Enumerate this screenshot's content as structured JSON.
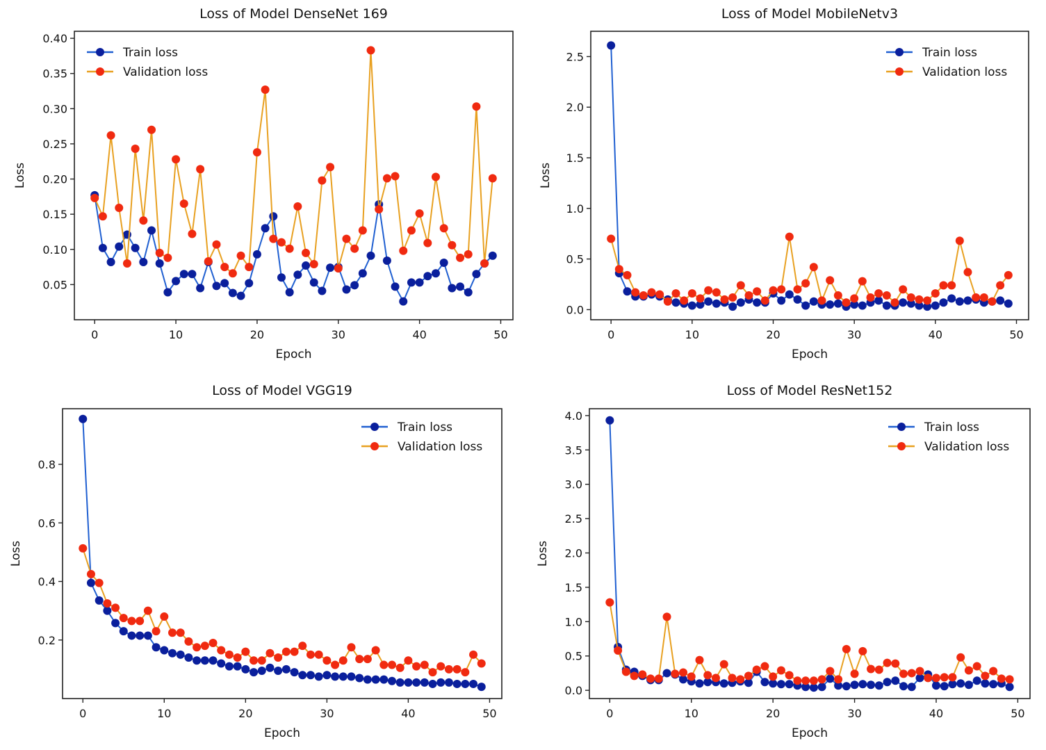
{
  "figure": {
    "layout": "2x2 grid of loss curves"
  },
  "legend_labels": {
    "train": "Train loss",
    "validation": "Validation loss"
  },
  "colors": {
    "train": "#0a1f9c",
    "train_line": "#1f5fd1",
    "validation": "#f02a10",
    "validation_line": "#e8a020"
  },
  "chart_data": [
    {
      "type": "line",
      "title": "Loss of Model DenseNet 169",
      "xlabel": "Epoch",
      "ylabel": "Loss",
      "xlim": [
        -2.5,
        51.5
      ],
      "ylim": [
        0.0,
        0.41
      ],
      "xticks": [
        0,
        10,
        20,
        30,
        40,
        50
      ],
      "xtick_labels": [
        "0",
        "10",
        "20",
        "30",
        "40",
        "50"
      ],
      "yticks": [
        0.05,
        0.1,
        0.15,
        0.2,
        0.25,
        0.3,
        0.35,
        0.4
      ],
      "ytick_labels": [
        "0.05",
        "0.10",
        "0.15",
        "0.20",
        "0.25",
        "0.30",
        "0.35",
        "0.40"
      ],
      "legend": "top-left",
      "grid": false,
      "x": [
        0,
        1,
        2,
        3,
        4,
        5,
        6,
        7,
        8,
        9,
        10,
        11,
        12,
        13,
        14,
        15,
        16,
        17,
        18,
        19,
        20,
        21,
        22,
        23,
        24,
        25,
        26,
        27,
        28,
        29,
        30,
        31,
        32,
        33,
        34,
        35,
        36,
        37,
        38,
        39,
        40,
        41,
        42,
        43,
        44,
        45,
        46,
        47,
        48,
        49
      ],
      "series": [
        {
          "name": "Train loss",
          "key": "train",
          "values": [
            0.177,
            0.102,
            0.082,
            0.104,
            0.121,
            0.102,
            0.082,
            0.127,
            0.08,
            0.039,
            0.055,
            0.065,
            0.065,
            0.045,
            0.082,
            0.048,
            0.052,
            0.038,
            0.034,
            0.052,
            0.093,
            0.13,
            0.147,
            0.06,
            0.039,
            0.064,
            0.077,
            0.053,
            0.041,
            0.074,
            0.075,
            0.043,
            0.049,
            0.066,
            0.091,
            0.164,
            0.084,
            0.047,
            0.026,
            0.053,
            0.053,
            0.062,
            0.066,
            0.081,
            0.045,
            0.047,
            0.039,
            0.065,
            0.08,
            0.091
          ]
        },
        {
          "name": "Validation loss",
          "key": "validation",
          "values": [
            0.173,
            0.147,
            0.262,
            0.159,
            0.08,
            0.243,
            0.141,
            0.27,
            0.095,
            0.088,
            0.228,
            0.165,
            0.122,
            0.214,
            0.083,
            0.107,
            0.075,
            0.066,
            0.091,
            0.075,
            0.238,
            0.327,
            0.115,
            0.11,
            0.101,
            0.161,
            0.095,
            0.079,
            0.198,
            0.217,
            0.073,
            0.115,
            0.101,
            0.127,
            0.383,
            0.157,
            0.201,
            0.204,
            0.098,
            0.127,
            0.151,
            0.109,
            0.203,
            0.13,
            0.106,
            0.088,
            0.093,
            0.303,
            0.08,
            0.201
          ]
        }
      ]
    },
    {
      "type": "line",
      "title": "Loss of Model MobileNetv3",
      "xlabel": "Epoch",
      "ylabel": "Loss",
      "xlim": [
        -2.5,
        51.5
      ],
      "ylim": [
        -0.1,
        2.75
      ],
      "xticks": [
        0,
        10,
        20,
        30,
        40,
        50
      ],
      "xtick_labels": [
        "0",
        "10",
        "20",
        "30",
        "40",
        "50"
      ],
      "yticks": [
        0.0,
        0.5,
        1.0,
        1.5,
        2.0,
        2.5
      ],
      "ytick_labels": [
        "0.0",
        "0.5",
        "1.0",
        "1.5",
        "2.0",
        "2.5"
      ],
      "legend": "top-right",
      "grid": false,
      "x": [
        0,
        1,
        2,
        3,
        4,
        5,
        6,
        7,
        8,
        9,
        10,
        11,
        12,
        13,
        14,
        15,
        16,
        17,
        18,
        19,
        20,
        21,
        22,
        23,
        24,
        25,
        26,
        27,
        28,
        29,
        30,
        31,
        32,
        33,
        34,
        35,
        36,
        37,
        38,
        39,
        40,
        41,
        42,
        43,
        44,
        45,
        46,
        47,
        48,
        49
      ],
      "series": [
        {
          "name": "Train loss",
          "key": "train",
          "values": [
            2.61,
            0.36,
            0.18,
            0.13,
            0.13,
            0.15,
            0.13,
            0.1,
            0.07,
            0.06,
            0.04,
            0.05,
            0.08,
            0.06,
            0.07,
            0.03,
            0.07,
            0.1,
            0.07,
            0.07,
            0.16,
            0.09,
            0.15,
            0.1,
            0.04,
            0.08,
            0.05,
            0.05,
            0.06,
            0.03,
            0.05,
            0.04,
            0.07,
            0.09,
            0.04,
            0.04,
            0.07,
            0.06,
            0.04,
            0.03,
            0.04,
            0.07,
            0.11,
            0.08,
            0.09,
            0.1,
            0.07,
            0.08,
            0.09,
            0.06
          ]
        },
        {
          "name": "Validation loss",
          "key": "validation",
          "values": [
            0.7,
            0.4,
            0.34,
            0.17,
            0.14,
            0.17,
            0.15,
            0.08,
            0.16,
            0.09,
            0.16,
            0.11,
            0.19,
            0.17,
            0.1,
            0.12,
            0.24,
            0.14,
            0.18,
            0.09,
            0.19,
            0.2,
            0.72,
            0.2,
            0.26,
            0.42,
            0.09,
            0.29,
            0.14,
            0.07,
            0.11,
            0.28,
            0.12,
            0.16,
            0.14,
            0.07,
            0.2,
            0.12,
            0.1,
            0.09,
            0.16,
            0.24,
            0.24,
            0.68,
            0.37,
            0.12,
            0.12,
            0.08,
            0.24,
            0.34
          ]
        }
      ]
    },
    {
      "type": "line",
      "title": "Loss of Model VGG19",
      "xlabel": "Epoch",
      "ylabel": "Loss",
      "xlim": [
        -2.5,
        51.5
      ],
      "ylim": [
        0.0,
        0.99
      ],
      "xticks": [
        0,
        10,
        20,
        30,
        40,
        50
      ],
      "xtick_labels": [
        "0",
        "10",
        "20",
        "30",
        "40",
        "50"
      ],
      "yticks": [
        0.2,
        0.4,
        0.6,
        0.8
      ],
      "ytick_labels": [
        "0.2",
        "0.4",
        "0.6",
        "0.8"
      ],
      "legend": "top-right",
      "grid": false,
      "x": [
        0,
        1,
        2,
        3,
        4,
        5,
        6,
        7,
        8,
        9,
        10,
        11,
        12,
        13,
        14,
        15,
        16,
        17,
        18,
        19,
        20,
        21,
        22,
        23,
        24,
        25,
        26,
        27,
        28,
        29,
        30,
        31,
        32,
        33,
        34,
        35,
        36,
        37,
        38,
        39,
        40,
        41,
        42,
        43,
        44,
        45,
        46,
        47,
        48,
        49
      ],
      "series": [
        {
          "name": "Train loss",
          "key": "train",
          "values": [
            0.955,
            0.395,
            0.335,
            0.3,
            0.258,
            0.23,
            0.215,
            0.215,
            0.215,
            0.175,
            0.165,
            0.155,
            0.15,
            0.14,
            0.13,
            0.13,
            0.13,
            0.12,
            0.11,
            0.11,
            0.1,
            0.09,
            0.095,
            0.105,
            0.095,
            0.1,
            0.09,
            0.08,
            0.08,
            0.075,
            0.08,
            0.075,
            0.075,
            0.075,
            0.07,
            0.065,
            0.065,
            0.065,
            0.06,
            0.055,
            0.055,
            0.055,
            0.055,
            0.05,
            0.055,
            0.055,
            0.05,
            0.05,
            0.05,
            0.04
          ]
        },
        {
          "name": "Validation loss",
          "key": "validation",
          "values": [
            0.513,
            0.425,
            0.395,
            0.325,
            0.31,
            0.275,
            0.265,
            0.265,
            0.3,
            0.23,
            0.28,
            0.225,
            0.225,
            0.195,
            0.175,
            0.18,
            0.19,
            0.165,
            0.15,
            0.14,
            0.16,
            0.13,
            0.13,
            0.155,
            0.14,
            0.16,
            0.16,
            0.18,
            0.15,
            0.15,
            0.13,
            0.115,
            0.13,
            0.175,
            0.135,
            0.135,
            0.165,
            0.115,
            0.115,
            0.105,
            0.13,
            0.11,
            0.115,
            0.09,
            0.11,
            0.1,
            0.1,
            0.09,
            0.15,
            0.12
          ]
        }
      ]
    },
    {
      "type": "line",
      "title": "Loss of Model ResNet152",
      "xlabel": "Epoch",
      "ylabel": "Loss",
      "xlim": [
        -2.5,
        51.5
      ],
      "ylim": [
        -0.12,
        4.1
      ],
      "xticks": [
        0,
        10,
        20,
        30,
        40,
        50
      ],
      "xtick_labels": [
        "0",
        "10",
        "20",
        "30",
        "40",
        "50"
      ],
      "yticks": [
        0.0,
        0.5,
        1.0,
        1.5,
        2.0,
        2.5,
        3.0,
        3.5,
        4.0
      ],
      "ytick_labels": [
        "0.0",
        "0.5",
        "1.0",
        "1.5",
        "2.0",
        "2.5",
        "3.0",
        "3.5",
        "4.0"
      ],
      "legend": "top-right",
      "grid": false,
      "x": [
        0,
        1,
        2,
        3,
        4,
        5,
        6,
        7,
        8,
        9,
        10,
        11,
        12,
        13,
        14,
        15,
        16,
        17,
        18,
        19,
        20,
        21,
        22,
        23,
        24,
        25,
        26,
        27,
        28,
        29,
        30,
        31,
        32,
        33,
        34,
        35,
        36,
        37,
        38,
        39,
        40,
        41,
        42,
        43,
        44,
        45,
        46,
        47,
        48,
        49
      ],
      "series": [
        {
          "name": "Train loss",
          "key": "train",
          "values": [
            3.93,
            0.63,
            0.3,
            0.27,
            0.21,
            0.15,
            0.15,
            0.25,
            0.23,
            0.16,
            0.13,
            0.1,
            0.12,
            0.12,
            0.1,
            0.11,
            0.13,
            0.11,
            0.27,
            0.12,
            0.1,
            0.09,
            0.09,
            0.07,
            0.05,
            0.04,
            0.05,
            0.17,
            0.07,
            0.06,
            0.08,
            0.09,
            0.08,
            0.07,
            0.12,
            0.14,
            0.06,
            0.05,
            0.18,
            0.23,
            0.07,
            0.06,
            0.09,
            0.1,
            0.08,
            0.14,
            0.1,
            0.09,
            0.1,
            0.05
          ]
        },
        {
          "name": "Validation loss",
          "key": "validation",
          "values": [
            1.28,
            0.58,
            0.27,
            0.21,
            0.23,
            0.17,
            0.17,
            1.07,
            0.24,
            0.26,
            0.2,
            0.44,
            0.22,
            0.18,
            0.38,
            0.18,
            0.16,
            0.21,
            0.3,
            0.35,
            0.2,
            0.29,
            0.22,
            0.14,
            0.14,
            0.14,
            0.16,
            0.28,
            0.16,
            0.6,
            0.24,
            0.57,
            0.31,
            0.3,
            0.4,
            0.39,
            0.24,
            0.25,
            0.28,
            0.18,
            0.18,
            0.19,
            0.19,
            0.48,
            0.29,
            0.35,
            0.21,
            0.28,
            0.17,
            0.16
          ]
        }
      ]
    }
  ]
}
